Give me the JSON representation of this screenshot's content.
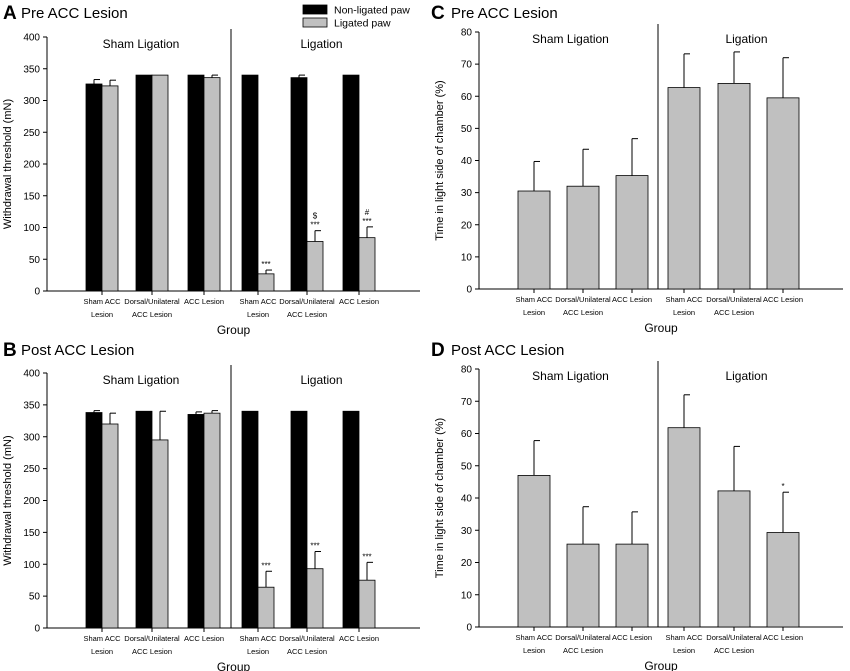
{
  "chart_data": [
    {
      "type": "bar",
      "panel": "A",
      "title": "Pre ACC Lesion",
      "ylabel": "Withdrawal threshold (mN)",
      "xlabel": "Group",
      "ylim": [
        0,
        400
      ],
      "yticks": [
        0,
        50,
        100,
        150,
        200,
        250,
        300,
        350,
        400
      ],
      "section_labels": [
        "Sham Ligation",
        "Ligation"
      ],
      "categories": [
        [
          "Sham ACC",
          "Lesion"
        ],
        [
          "Dorsal/Unilateral",
          "ACC Lesion"
        ],
        [
          "ACC Lesion"
        ],
        [
          "Sham ACC",
          "Lesion"
        ],
        [
          "Dorsal/Unilateral",
          "ACC Lesion"
        ],
        [
          "ACC Lesion"
        ]
      ],
      "legend": {
        "position": "top-right",
        "entries": [
          "Non-ligated paw",
          "Ligated paw"
        ]
      },
      "series": [
        {
          "name": "Non-ligated paw",
          "color": "#000000",
          "values": [
            326,
            340,
            340,
            340,
            336,
            340
          ],
          "errors": [
            7,
            0,
            0,
            0,
            4,
            0
          ]
        },
        {
          "name": "Ligated paw",
          "color": "#c0c0c0",
          "values": [
            323,
            340,
            336,
            27,
            78,
            84
          ],
          "errors": [
            9,
            0,
            4,
            6,
            17,
            17
          ]
        }
      ],
      "annotations": [
        {
          "series": 1,
          "index": 3,
          "lines": [
            "***"
          ]
        },
        {
          "series": 1,
          "index": 4,
          "lines": [
            "$",
            "***"
          ]
        },
        {
          "series": 1,
          "index": 5,
          "lines": [
            "#",
            "***"
          ]
        }
      ]
    },
    {
      "type": "bar",
      "panel": "B",
      "title": "Post ACC Lesion",
      "ylabel": "Withdrawal threshold (mN)",
      "xlabel": "Group",
      "ylim": [
        0,
        400
      ],
      "yticks": [
        0,
        50,
        100,
        150,
        200,
        250,
        300,
        350,
        400
      ],
      "section_labels": [
        "Sham Ligation",
        "Ligation"
      ],
      "categories": [
        [
          "Sham ACC",
          "Lesion"
        ],
        [
          "Dorsal/Unilateral",
          "ACC Lesion"
        ],
        [
          "ACC Lesion"
        ],
        [
          "Sham ACC",
          "Lesion"
        ],
        [
          "Dorsal/Unilateral",
          "ACC Lesion"
        ],
        [
          "ACC Lesion"
        ]
      ],
      "series": [
        {
          "name": "Non-ligated paw",
          "color": "#000000",
          "values": [
            338,
            340,
            335,
            340,
            340,
            340
          ],
          "errors": [
            3,
            0,
            4,
            0,
            0,
            0
          ]
        },
        {
          "name": "Ligated paw",
          "color": "#c0c0c0",
          "values": [
            320,
            295,
            337,
            64,
            93,
            75
          ],
          "errors": [
            17,
            45,
            4,
            25,
            27,
            28
          ]
        }
      ],
      "annotations": [
        {
          "series": 1,
          "index": 3,
          "lines": [
            "***"
          ]
        },
        {
          "series": 1,
          "index": 4,
          "lines": [
            "***"
          ]
        },
        {
          "series": 1,
          "index": 5,
          "lines": [
            "***"
          ]
        }
      ]
    },
    {
      "type": "bar",
      "panel": "C",
      "title": "Pre ACC Lesion",
      "ylabel": "Time in light side of chamber (%)",
      "xlabel": "Group",
      "ylim": [
        0,
        80
      ],
      "yticks": [
        0,
        10,
        20,
        30,
        40,
        50,
        60,
        70,
        80
      ],
      "section_labels": [
        "Sham Ligation",
        "Ligation"
      ],
      "categories": [
        [
          "Sham ACC",
          "Lesion"
        ],
        [
          "Dorsal/Unilateral",
          "ACC Lesion"
        ],
        [
          "ACC Lesion"
        ],
        [
          "Sham ACC",
          "Lesion"
        ],
        [
          "Dorsal/Unilateral",
          "ACC Lesion"
        ],
        [
          "ACC Lesion"
        ]
      ],
      "series": [
        {
          "name": "Time in light side",
          "color": "#c0c0c0",
          "values": [
            30.5,
            32,
            35.3,
            62.7,
            64,
            59.5
          ],
          "errors": [
            9.2,
            11.5,
            11.5,
            10.5,
            9.8,
            12.5
          ]
        }
      ],
      "annotations": []
    },
    {
      "type": "bar",
      "panel": "D",
      "title": "Post ACC Lesion",
      "ylabel": "Time in light side of chamber (%)",
      "xlabel": "Group",
      "ylim": [
        0,
        80
      ],
      "yticks": [
        0,
        10,
        20,
        30,
        40,
        50,
        60,
        70,
        80
      ],
      "section_labels": [
        "Sham Ligation",
        "Ligation"
      ],
      "categories": [
        [
          "Sham ACC",
          "Lesion"
        ],
        [
          "Dorsal/Unilateral",
          "ACC Lesion"
        ],
        [
          "ACC Lesion"
        ],
        [
          "Sham ACC",
          "Lesion"
        ],
        [
          "Dorsal/Unilateral",
          "ACC Lesion"
        ],
        [
          "ACC Lesion"
        ]
      ],
      "series": [
        {
          "name": "Time in light side",
          "color": "#c0c0c0",
          "values": [
            47,
            25.7,
            25.7,
            61.8,
            42.2,
            29.3
          ],
          "errors": [
            10.8,
            11.6,
            10,
            10.2,
            13.8,
            12.5
          ]
        }
      ],
      "annotations": [
        {
          "series": 0,
          "index": 5,
          "lines": [
            "*"
          ]
        }
      ]
    }
  ]
}
